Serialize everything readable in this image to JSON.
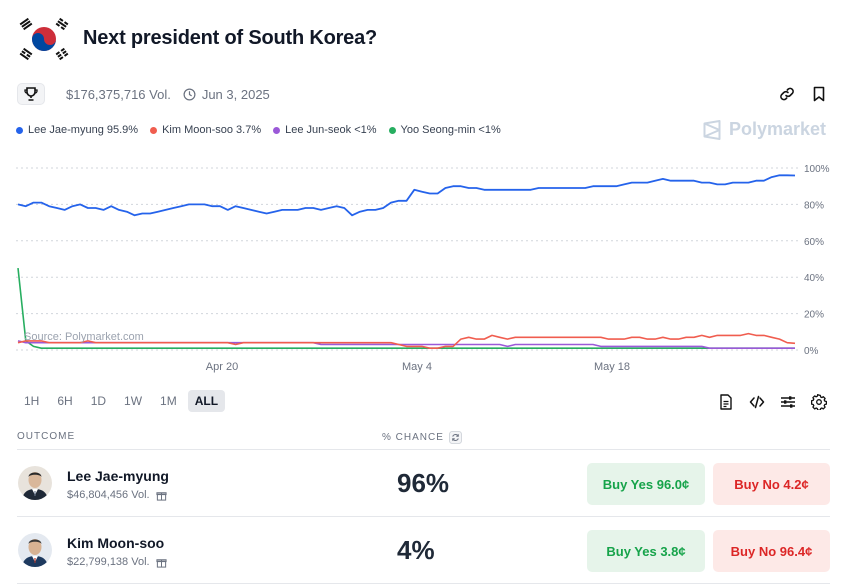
{
  "market": {
    "title": "Next president of South Korea?",
    "volume": "$176,375,716 Vol.",
    "end_date": "Jun 3, 2025"
  },
  "icons": {
    "flag": "south-korea-flag",
    "trophy": "trophy-icon",
    "clock": "clock-icon",
    "link": "link-icon",
    "bookmark": "bookmark-icon",
    "document": "document-icon",
    "embed": "code-icon",
    "filters": "sliders-icon",
    "settings": "gear-icon",
    "refresh": "refresh-icon",
    "gift": "gift-icon"
  },
  "legend": [
    {
      "label": "Lee Jae-myung 95.9%",
      "color": "#2563eb"
    },
    {
      "label": "Kim Moon-soo 3.7%",
      "color": "#f05d4f"
    },
    {
      "label": "Lee Jun-seok <1%",
      "color": "#9b59d8"
    },
    {
      "label": "Yoo Seong-min <1%",
      "color": "#27ae60"
    }
  ],
  "brand": "Polymarket",
  "source": "Source: Polymarket.com",
  "chart_data": {
    "type": "line",
    "x_ticks": [
      "Apr 20",
      "May 4",
      "May 18"
    ],
    "y_ticks": [
      "100%",
      "80%",
      "60%",
      "40%",
      "20%",
      "0%"
    ],
    "ylim": [
      0,
      100
    ],
    "grid": true,
    "series": [
      {
        "name": "Lee Jae-myung",
        "color": "#2563eb",
        "values": [
          80,
          79,
          81,
          81,
          79,
          78,
          77,
          79,
          80,
          78,
          78,
          77,
          79,
          77,
          76,
          74,
          75,
          75,
          76,
          77,
          78,
          79,
          80,
          80,
          80,
          79,
          79,
          77,
          79,
          78,
          77,
          76,
          75,
          76,
          77,
          77,
          77,
          78,
          78,
          77,
          78,
          79,
          78,
          74,
          76,
          77,
          77,
          78,
          81,
          82,
          82,
          88,
          87,
          86,
          86,
          89,
          90,
          90,
          89,
          89,
          88,
          88,
          88,
          88,
          88,
          88,
          88,
          89,
          89,
          89,
          89,
          89,
          89,
          89,
          90,
          90,
          90,
          90,
          91,
          92,
          92,
          92,
          93,
          94,
          93,
          93,
          93,
          93,
          92,
          92,
          91,
          91,
          92,
          92,
          92,
          93,
          93,
          95,
          96,
          96,
          95.9
        ]
      },
      {
        "name": "Kim Moon-soo",
        "color": "#f05d4f",
        "values": [
          4,
          5,
          5,
          5,
          4,
          4,
          4,
          4,
          4,
          5,
          4,
          4,
          4,
          4,
          4,
          4,
          4,
          4,
          4,
          4,
          4,
          4,
          4,
          4,
          4,
          4,
          4,
          4,
          3,
          4,
          4,
          4,
          4,
          4,
          4,
          4,
          4,
          4,
          4,
          4,
          4,
          4,
          4,
          4,
          4,
          4,
          4,
          4,
          4,
          3,
          2,
          2,
          2,
          1,
          1,
          2,
          2,
          6,
          7,
          6,
          6,
          8,
          7,
          6,
          7,
          7,
          7,
          7,
          7,
          7,
          7,
          7,
          7,
          7,
          7,
          7,
          6,
          6,
          6,
          7,
          7,
          6,
          6,
          7,
          6,
          6,
          7,
          7,
          8,
          7,
          8,
          8,
          8,
          8,
          9,
          8,
          8,
          7,
          6,
          4,
          3.7
        ]
      },
      {
        "name": "Lee Jun-seok",
        "color": "#9b59d8",
        "values": [
          5,
          4,
          4,
          4,
          4,
          4,
          4,
          4,
          4,
          4,
          4,
          4,
          4,
          4,
          4,
          4,
          4,
          4,
          4,
          4,
          4,
          4,
          4,
          4,
          4,
          4,
          4,
          4,
          4,
          4,
          4,
          4,
          4,
          4,
          4,
          4,
          4,
          4,
          4,
          3,
          3,
          3,
          3,
          3,
          3,
          3,
          3,
          3,
          3,
          3,
          3,
          3,
          3,
          3,
          3,
          3,
          3,
          3,
          3,
          3,
          3,
          3,
          3,
          2,
          3,
          3,
          3,
          3,
          3,
          3,
          3,
          3,
          3,
          3,
          3,
          2,
          2,
          2,
          2,
          2,
          2,
          2,
          2,
          2,
          2,
          2,
          2,
          2,
          2,
          1,
          1,
          1,
          1,
          1,
          1,
          1,
          1,
          1,
          1,
          1,
          1
        ]
      },
      {
        "name": "Yoo Seong-min",
        "color": "#27ae60",
        "values": [
          45,
          5,
          2,
          1,
          1,
          1,
          1,
          1,
          1,
          1,
          1,
          1,
          1,
          1,
          1,
          1,
          1,
          1,
          1,
          1,
          1,
          1,
          1,
          1,
          1,
          1,
          1,
          1,
          1,
          1,
          1,
          1,
          1,
          1,
          1,
          1,
          1,
          1,
          1,
          1,
          1,
          1,
          1,
          1,
          1,
          1,
          1,
          1,
          1,
          1,
          1,
          1,
          1,
          1,
          1,
          1,
          1,
          1,
          1,
          1,
          1,
          1,
          1,
          1,
          1,
          1,
          1,
          1,
          1,
          1,
          1,
          1,
          1,
          1,
          1,
          1,
          1,
          1,
          1,
          1,
          1,
          1,
          1,
          1,
          1,
          1,
          1,
          1,
          1,
          1,
          1,
          1,
          1,
          1,
          1,
          1,
          1,
          1,
          1,
          1,
          1
        ]
      }
    ]
  },
  "timeframes": [
    "1H",
    "6H",
    "1D",
    "1W",
    "1M",
    "ALL"
  ],
  "active_timeframe": "ALL",
  "table": {
    "col_outcome": "OUTCOME",
    "col_chance": "% CHANCE",
    "rows": [
      {
        "name": "Lee Jae-myung",
        "volume": "$46,804,456 Vol.",
        "chance": "96%",
        "yes": "Buy Yes 96.0¢",
        "no": "Buy No 4.2¢"
      },
      {
        "name": "Kim Moon-soo",
        "volume": "$22,799,138 Vol.",
        "chance": "4%",
        "yes": "Buy Yes 3.8¢",
        "no": "Buy No 96.4¢"
      }
    ]
  }
}
